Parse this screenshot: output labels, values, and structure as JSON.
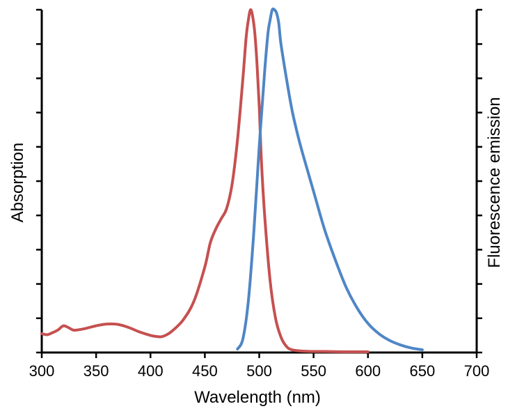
{
  "chart_data": {
    "type": "line",
    "xlabel": "Wavelength (nm)",
    "ylabel_left": "Absorption",
    "ylabel_right": "Fluorescence emission",
    "xlim": [
      300,
      700
    ],
    "ylim": [
      0,
      1
    ],
    "x_ticks": [
      300,
      350,
      400,
      450,
      500,
      550,
      600,
      650,
      700
    ],
    "y_ticks_left": [
      0,
      0.1,
      0.2,
      0.3,
      0.4,
      0.5,
      0.6,
      0.7,
      0.8,
      0.9,
      1.0
    ],
    "y_ticks_right": [
      0,
      0.1,
      0.2,
      0.3,
      0.4,
      0.5,
      0.6,
      0.7,
      0.8,
      0.9,
      1.0
    ],
    "show_left_tick_labels": false,
    "show_right_tick_labels": false,
    "grid": false,
    "series": [
      {
        "color": "#c65050",
        "axis": "left",
        "x": [
          300,
          305,
          310,
          315,
          320,
          325,
          330,
          340,
          350,
          360,
          370,
          380,
          390,
          400,
          405,
          410,
          415,
          420,
          430,
          440,
          450,
          455,
          460,
          465,
          470,
          475,
          480,
          485,
          488,
          490,
          492,
          494,
          496,
          498,
          500,
          502,
          505,
          510,
          515,
          520,
          525,
          530,
          540,
          550,
          560,
          580,
          600
        ],
        "y": [
          0.055,
          0.052,
          0.058,
          0.066,
          0.078,
          0.072,
          0.065,
          0.07,
          0.078,
          0.083,
          0.082,
          0.073,
          0.06,
          0.05,
          0.047,
          0.046,
          0.052,
          0.063,
          0.095,
          0.15,
          0.25,
          0.32,
          0.36,
          0.39,
          0.42,
          0.49,
          0.62,
          0.8,
          0.92,
          0.97,
          1.0,
          0.98,
          0.93,
          0.84,
          0.72,
          0.56,
          0.4,
          0.21,
          0.1,
          0.045,
          0.018,
          0.008,
          0.004,
          0.003,
          0.003,
          0.002,
          0.002
        ]
      },
      {
        "color": "#4f86c6",
        "axis": "right",
        "x": [
          480,
          485,
          490,
          495,
          500,
          505,
          508,
          510,
          512,
          514,
          516,
          518,
          520,
          525,
          530,
          535,
          540,
          550,
          560,
          570,
          580,
          590,
          600,
          610,
          620,
          630,
          640,
          650
        ],
        "y": [
          0.01,
          0.04,
          0.15,
          0.35,
          0.6,
          0.82,
          0.93,
          0.97,
          1.0,
          1.0,
          0.99,
          0.96,
          0.9,
          0.8,
          0.71,
          0.64,
          0.58,
          0.47,
          0.36,
          0.27,
          0.19,
          0.13,
          0.085,
          0.055,
          0.035,
          0.022,
          0.013,
          0.008
        ]
      }
    ]
  }
}
